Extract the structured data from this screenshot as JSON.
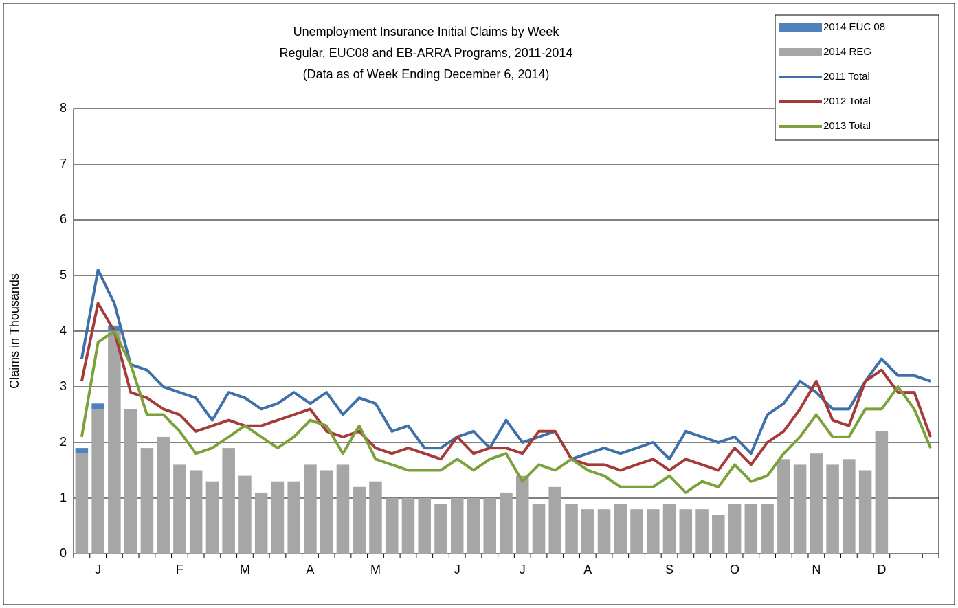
{
  "chart_data": {
    "type": "bar_line",
    "title": [
      "Unemployment Insurance Initial Claims by Week",
      "Regular, EUC08 and EB-ARRA Programs, 2011-2014",
      "(Data as of Week Ending December 6, 2014)"
    ],
    "y_label": "Claims in Thousands",
    "categories": [
      null,
      "J",
      null,
      null,
      null,
      null,
      "F",
      null,
      null,
      null,
      "M",
      null,
      null,
      null,
      "A",
      null,
      null,
      null,
      "M",
      null,
      null,
      null,
      null,
      "J",
      null,
      null,
      null,
      "J",
      null,
      null,
      null,
      "A",
      null,
      null,
      null,
      null,
      "S",
      null,
      null,
      null,
      "O",
      null,
      null,
      null,
      null,
      "N",
      null,
      null,
      null,
      "D",
      null,
      null,
      null
    ],
    "ylim": [
      0,
      8
    ],
    "yticks": [
      0,
      1,
      2,
      3,
      4,
      5,
      6,
      7,
      8
    ],
    "grid": true,
    "legend": "top-right",
    "series": [
      {
        "name": "2014 EUC 08",
        "type": "bar",
        "color": "#4f81bd",
        "values": [
          0.1,
          0.1,
          0.1,
          null,
          null,
          null,
          null,
          null,
          null,
          null,
          null,
          null,
          null,
          null,
          null,
          null,
          null,
          null,
          null,
          null,
          null,
          null,
          null,
          null,
          null,
          null,
          null,
          null,
          null,
          null,
          null,
          null,
          null,
          null,
          null,
          null,
          null,
          null,
          null,
          null,
          null,
          null,
          null,
          null,
          null,
          null,
          null,
          null,
          null,
          null,
          null,
          null,
          null
        ]
      },
      {
        "name": "2014 REG",
        "type": "bar",
        "color": "#a6a6a6",
        "values": [
          1.8,
          2.6,
          4.0,
          2.6,
          1.9,
          2.1,
          1.6,
          1.5,
          1.3,
          1.9,
          1.4,
          1.1,
          1.3,
          1.3,
          1.6,
          1.5,
          1.6,
          1.2,
          1.3,
          1.0,
          1.0,
          1.0,
          0.9,
          1.0,
          1.0,
          1.0,
          1.1,
          1.4,
          0.9,
          1.2,
          0.9,
          0.8,
          0.8,
          0.9,
          0.8,
          0.8,
          0.9,
          0.8,
          0.8,
          0.7,
          0.9,
          0.9,
          0.9,
          1.7,
          1.6,
          1.8,
          1.6,
          1.7,
          1.5,
          2.2,
          null,
          null,
          null
        ]
      },
      {
        "name": "2011 Total",
        "type": "line",
        "color": "#4070a8",
        "values": [
          3.5,
          5.1,
          4.5,
          3.4,
          3.3,
          3.0,
          2.9,
          2.8,
          2.4,
          2.9,
          2.8,
          2.6,
          2.7,
          2.9,
          2.7,
          2.9,
          2.5,
          2.8,
          2.7,
          2.2,
          2.3,
          1.9,
          1.9,
          2.1,
          2.2,
          1.9,
          2.4,
          2.0,
          2.1,
          2.2,
          1.7,
          1.8,
          1.9,
          1.8,
          1.9,
          2.0,
          1.7,
          2.2,
          2.1,
          2.0,
          2.1,
          1.8,
          2.5,
          2.7,
          3.1,
          2.9,
          2.6,
          2.6,
          3.1,
          3.5,
          3.2,
          3.2,
          3.1
        ]
      },
      {
        "name": "2012 Total",
        "type": "line",
        "color": "#a53a38",
        "values": [
          3.1,
          4.5,
          4.0,
          2.9,
          2.8,
          2.6,
          2.5,
          2.2,
          2.3,
          2.4,
          2.3,
          2.3,
          2.4,
          2.5,
          2.6,
          2.2,
          2.1,
          2.2,
          1.9,
          1.8,
          1.9,
          1.8,
          1.7,
          2.1,
          1.8,
          1.9,
          1.9,
          1.8,
          2.2,
          2.2,
          1.7,
          1.6,
          1.6,
          1.5,
          1.6,
          1.7,
          1.5,
          1.7,
          1.6,
          1.5,
          1.9,
          1.6,
          2.0,
          2.2,
          2.6,
          3.1,
          2.4,
          2.3,
          3.1,
          3.3,
          2.9,
          2.9,
          2.1
        ]
      },
      {
        "name": "2013 Total",
        "type": "line",
        "color": "#7aa13c",
        "values": [
          2.1,
          3.8,
          4.0,
          3.4,
          2.5,
          2.5,
          2.2,
          1.8,
          1.9,
          2.1,
          2.3,
          2.1,
          1.9,
          2.1,
          2.4,
          2.3,
          1.8,
          2.3,
          1.7,
          1.6,
          1.5,
          1.5,
          1.5,
          1.7,
          1.5,
          1.7,
          1.8,
          1.3,
          1.6,
          1.5,
          1.7,
          1.5,
          1.4,
          1.2,
          1.2,
          1.2,
          1.4,
          1.1,
          1.3,
          1.2,
          1.6,
          1.3,
          1.4,
          1.8,
          2.1,
          2.5,
          2.1,
          2.1,
          2.6,
          2.6,
          3.0,
          2.6,
          1.9
        ]
      }
    ]
  }
}
